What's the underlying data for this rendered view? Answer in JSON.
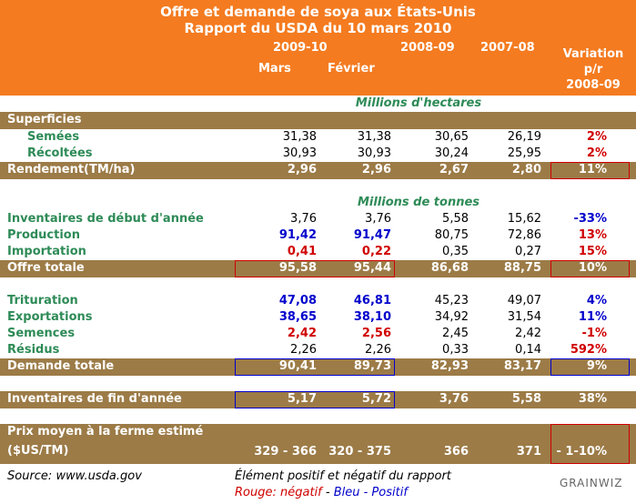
{
  "header": {
    "title": "Offre et demande de soya aux États-Unis",
    "subtitle": "Rapport du USDA du 10 mars 2010",
    "season": "2009-10",
    "months": [
      "Mars",
      "Février"
    ],
    "years": [
      "2008-09",
      "2007-08"
    ],
    "variation": [
      "Variation",
      "p/r",
      "2008-09"
    ]
  },
  "rows": [
    {
      "kind": "unit",
      "label": "Millions d'hectares"
    },
    {
      "kind": "band",
      "label": "Superficies"
    },
    {
      "kind": "sub",
      "label": "Semées",
      "cells": [
        "31,38",
        "31,38",
        "30,65",
        "26,19",
        "2%"
      ],
      "colors": [
        "#000",
        "#000",
        "#000",
        "#000",
        "#d00000"
      ]
    },
    {
      "kind": "sub",
      "label": "Récoltées",
      "cells": [
        "30,93",
        "30,93",
        "30,24",
        "25,95",
        "2%"
      ],
      "colors": [
        "#000",
        "#000",
        "#000",
        "#000",
        "#d00000"
      ]
    },
    {
      "kind": "band",
      "label": "Rendement(TM/ha)",
      "cells": [
        "2,96",
        "2,96",
        "2,67",
        "2,80",
        "11%"
      ]
    },
    {
      "kind": "blank"
    },
    {
      "kind": "unit",
      "label": "Millions de tonnes"
    },
    {
      "kind": "row",
      "label": "Inventaires de début d'année",
      "cells": [
        "3,76",
        "3,76",
        "5,58",
        "15,62",
        "-33%"
      ],
      "colors": [
        "#000",
        "#000",
        "#000",
        "#000",
        "#0000cc"
      ]
    },
    {
      "kind": "row",
      "label": "Production",
      "cells": [
        "91,42",
        "91,47",
        "80,75",
        "72,86",
        "13%"
      ],
      "colors": [
        "#0000cc",
        "#0000cc",
        "#000",
        "#000",
        "#d00000"
      ]
    },
    {
      "kind": "row",
      "label": "Importation",
      "cells": [
        "0,41",
        "0,22",
        "0,35",
        "0,27",
        "15%"
      ],
      "colors": [
        "#d00000",
        "#d00000",
        "#000",
        "#000",
        "#d00000"
      ]
    },
    {
      "kind": "band",
      "label": "Offre totale",
      "cells": [
        "95,58",
        "95,44",
        "86,68",
        "88,75",
        "10%"
      ]
    },
    {
      "kind": "blank"
    },
    {
      "kind": "row",
      "label": "Trituration",
      "cells": [
        "47,08",
        "46,81",
        "45,23",
        "49,07",
        "4%"
      ],
      "colors": [
        "#0000cc",
        "#0000cc",
        "#000",
        "#000",
        "#0000cc"
      ]
    },
    {
      "kind": "row",
      "label": "Exportations",
      "cells": [
        "38,65",
        "38,10",
        "34,92",
        "31,54",
        "11%"
      ],
      "colors": [
        "#0000cc",
        "#0000cc",
        "#000",
        "#000",
        "#0000cc"
      ]
    },
    {
      "kind": "row",
      "label": "Semences",
      "cells": [
        "2,42",
        "2,56",
        "2,45",
        "2,42",
        "-1%"
      ],
      "colors": [
        "#d00000",
        "#d00000",
        "#000",
        "#000",
        "#d00000"
      ]
    },
    {
      "kind": "row",
      "label": "Résidus",
      "cells": [
        "2,26",
        "2,26",
        "0,33",
        "0,14",
        "592%"
      ],
      "colors": [
        "#000",
        "#000",
        "#000",
        "#000",
        "#d00000"
      ]
    },
    {
      "kind": "band",
      "label": "Demande totale",
      "cells": [
        "90,41",
        "89,73",
        "82,93",
        "83,17",
        "9%"
      ]
    },
    {
      "kind": "blank"
    },
    {
      "kind": "band",
      "label": "Inventaires de fin d'année",
      "cells": [
        "5,17",
        "5,72",
        "3,76",
        "5,58",
        "38%"
      ]
    },
    {
      "kind": "blank"
    },
    {
      "kind": "price",
      "label": "Prix moyen à la ferme estimé",
      "label2": "($US/TM)",
      "cells": [
        "329 - 366",
        "320 - 375",
        "366",
        "371",
        "- 1-10%"
      ]
    }
  ],
  "footer": {
    "source": "Source: www.usda.gov",
    "legend": "Élément positif et négatif du rapport",
    "negative": "Rouge: négatif",
    "separator": " - ",
    "positive": "Bleu - Positif",
    "logo": "GRAINWIZ"
  }
}
